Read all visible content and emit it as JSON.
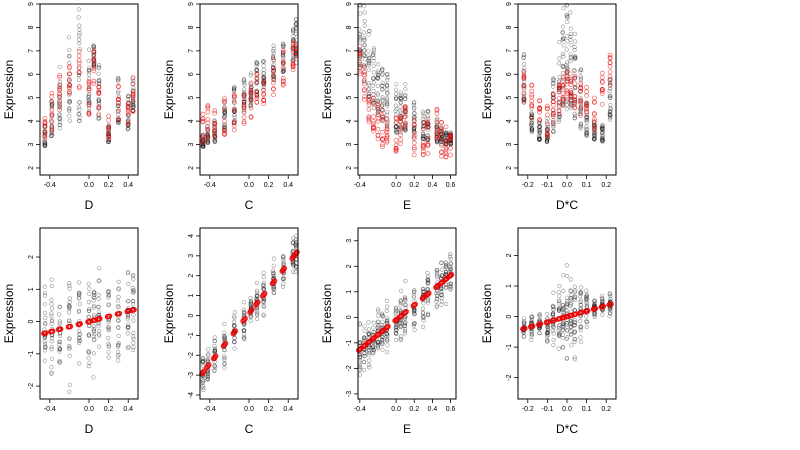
{
  "figure": {
    "ylabel": "Expression"
  },
  "chart_data": [
    {
      "type": "scatter",
      "panel": "raw-D",
      "xlabel": "D",
      "ylabel": "Expression",
      "xlim": [
        -0.5,
        0.5
      ],
      "ylim": [
        1.7,
        9.0
      ],
      "xticks": [
        -0.4,
        0.0,
        0.2,
        0.4
      ],
      "yticks": [
        2,
        3,
        4,
        5,
        6,
        7,
        8,
        9
      ],
      "x_levels": [
        -0.45,
        -0.38,
        -0.3,
        -0.2,
        -0.1,
        0.0,
        0.05,
        0.1,
        0.2,
        0.3,
        0.4,
        0.45
      ],
      "raw_a": [
        2.9,
        3.3,
        3.6,
        4.0,
        3.9,
        4.2,
        6.3,
        4.1,
        3.1,
        3.9,
        3.5,
        4.4
      ],
      "raw_b": [
        0.4,
        0.6,
        1.1,
        1.5,
        1.9,
        1.1,
        0.4,
        1.0,
        0.3,
        0.8,
        0.7,
        0.6
      ],
      "raw_red": [
        3.8,
        4.4,
        5.2,
        5.8,
        6.2,
        4.9,
        6.2,
        5.0,
        3.6,
        4.8,
        4.6,
        5.1
      ],
      "black_points_per_column": 22,
      "red_points_per_column": 10
    },
    {
      "type": "scatter",
      "panel": "raw-C",
      "xlabel": "C",
      "ylabel": "Expression",
      "xlim": [
        -0.5,
        0.5
      ],
      "ylim": [
        1.7,
        9.0
      ],
      "xticks": [
        -0.4,
        0.0,
        0.2,
        0.4
      ],
      "yticks": [
        2,
        3,
        4,
        5,
        6,
        7,
        8,
        9
      ],
      "x_levels": [
        -0.47,
        -0.42,
        -0.35,
        -0.25,
        -0.15,
        -0.05,
        0.02,
        0.08,
        0.15,
        0.25,
        0.35,
        0.45,
        0.48
      ],
      "raw_a": [
        2.9,
        3.0,
        3.1,
        3.6,
        3.9,
        4.3,
        4.6,
        5.0,
        5.3,
        5.7,
        6.1,
        6.5,
        6.8
      ],
      "raw_b": [
        0.2,
        0.3,
        0.4,
        0.5,
        0.6,
        0.6,
        0.6,
        0.6,
        0.5,
        0.6,
        0.5,
        0.6,
        0.7
      ],
      "raw_red": [
        3.6,
        3.9,
        4.0,
        4.2,
        4.4,
        4.6,
        4.9,
        5.2,
        5.5,
        5.9,
        6.3,
        6.8,
        7.0
      ],
      "black_points_per_column": 22,
      "red_points_per_column": 10
    },
    {
      "type": "scatter",
      "panel": "raw-E",
      "xlabel": "E",
      "ylabel": "Expression",
      "xlim": [
        -0.42,
        0.66
      ],
      "ylim": [
        1.7,
        9.0
      ],
      "xticks": [
        -0.4,
        0.0,
        0.2,
        0.4,
        0.6
      ],
      "yticks": [
        2,
        3,
        4,
        5,
        6,
        7,
        8,
        9
      ],
      "x_levels": [
        -0.4,
        -0.35,
        -0.3,
        -0.25,
        -0.2,
        -0.15,
        -0.1,
        0.0,
        0.05,
        0.1,
        0.2,
        0.3,
        0.35,
        0.45,
        0.5,
        0.55,
        0.6
      ],
      "raw_a": [
        6.2,
        5.6,
        5.0,
        4.5,
        4.2,
        4.0,
        3.7,
        3.5,
        3.4,
        3.6,
        3.3,
        3.2,
        3.2,
        3.1,
        3.0,
        3.0,
        3.0
      ],
      "raw_b": [
        1.2,
        1.3,
        1.2,
        1.1,
        1.0,
        0.9,
        0.9,
        0.8,
        0.7,
        0.8,
        0.6,
        0.5,
        0.5,
        0.4,
        0.3,
        0.2,
        0.2
      ],
      "raw_red": [
        6.8,
        5.6,
        4.6,
        4.3,
        4.0,
        3.7,
        3.6,
        3.5,
        3.6,
        4.1,
        3.3,
        3.2,
        3.3,
        4.0,
        3.2,
        3.0,
        3.1
      ],
      "black_points_per_column": 22,
      "red_points_per_column": 10
    },
    {
      "type": "scatter",
      "panel": "raw-DC",
      "xlabel": "D*C",
      "ylabel": "Expression",
      "xlim": [
        -0.25,
        0.25
      ],
      "ylim": [
        1.7,
        9.0
      ],
      "xticks": [
        -0.2,
        -0.1,
        0.0,
        0.1,
        0.2
      ],
      "yticks": [
        2,
        3,
        4,
        5,
        6,
        7,
        8,
        9
      ],
      "x_levels": [
        -0.22,
        -0.18,
        -0.14,
        -0.1,
        -0.07,
        -0.04,
        -0.02,
        0.0,
        0.02,
        0.04,
        0.07,
        0.1,
        0.14,
        0.18,
        0.22
      ],
      "raw_a": [
        4.8,
        3.5,
        3.2,
        3.1,
        3.5,
        3.9,
        4.5,
        4.5,
        4.4,
        3.9,
        3.6,
        3.3,
        3.2,
        3.1,
        4.0
      ],
      "raw_b": [
        0.8,
        0.4,
        0.3,
        0.4,
        0.9,
        1.4,
        1.8,
        1.9,
        1.7,
        1.5,
        1.0,
        0.6,
        0.3,
        0.3,
        0.7
      ],
      "raw_red": [
        5.6,
        4.8,
        4.2,
        4.0,
        4.5,
        5.0,
        5.3,
        5.4,
        5.4,
        5.2,
        5.0,
        4.7,
        4.3,
        5.5,
        6.2
      ],
      "black_points_per_column": 24,
      "red_points_per_column": 10
    },
    {
      "type": "scatter",
      "panel": "partial-D",
      "xlabel": "D",
      "ylabel": "Expression",
      "xlim": [
        -0.5,
        0.5
      ],
      "ylim": [
        -2.4,
        2.9
      ],
      "xticks": [
        -0.4,
        0.0,
        0.2,
        0.4
      ],
      "yticks": [
        -2,
        -1,
        0,
        1,
        2
      ],
      "x_levels": [
        -0.45,
        -0.38,
        -0.3,
        -0.2,
        -0.1,
        0.0,
        0.05,
        0.1,
        0.2,
        0.3,
        0.4,
        0.45
      ],
      "black_spread": 0.9,
      "black_points_per_column": 22,
      "fit_intercept": 0.0,
      "fit_slope": 0.8
    },
    {
      "type": "scatter",
      "panel": "partial-C",
      "xlabel": "C",
      "ylabel": "Expression",
      "xlim": [
        -0.5,
        0.5
      ],
      "ylim": [
        -4.2,
        4.4
      ],
      "xticks": [
        -0.4,
        0.0,
        0.2,
        0.4
      ],
      "yticks": [
        -4,
        -3,
        -2,
        -1,
        0,
        1,
        2,
        3,
        4
      ],
      "x_levels": [
        -0.47,
        -0.42,
        -0.35,
        -0.25,
        -0.15,
        -0.05,
        0.02,
        0.08,
        0.15,
        0.25,
        0.35,
        0.45,
        0.48
      ],
      "black_spread": 0.6,
      "black_points_per_column": 22,
      "fit_intercept": 0.1,
      "fit_slope": 6.3
    },
    {
      "type": "scatter",
      "panel": "partial-E",
      "xlabel": "E",
      "ylabel": "Expression",
      "xlim": [
        -0.42,
        0.66
      ],
      "ylim": [
        -3.2,
        3.5
      ],
      "xticks": [
        -0.4,
        0.0,
        0.2,
        0.4,
        0.6
      ],
      "yticks": [
        -3,
        -2,
        -1,
        0,
        1,
        2,
        3
      ],
      "x_levels": [
        -0.4,
        -0.35,
        -0.3,
        -0.25,
        -0.2,
        -0.15,
        -0.1,
        0.0,
        0.05,
        0.1,
        0.2,
        0.3,
        0.35,
        0.45,
        0.5,
        0.55,
        0.6
      ],
      "black_spread": 0.6,
      "black_points_per_column": 22,
      "fit_intercept": -0.1,
      "fit_slope": 2.9
    },
    {
      "type": "scatter",
      "panel": "partial-DC",
      "xlabel": "D*C",
      "ylabel": "Expression",
      "xlim": [
        -0.25,
        0.25
      ],
      "ylim": [
        -2.7,
        2.9
      ],
      "xticks": [
        -0.2,
        -0.1,
        0.0,
        0.1,
        0.2
      ],
      "yticks": [
        -2,
        -1,
        0,
        1,
        2
      ],
      "x_levels": [
        -0.22,
        -0.18,
        -0.14,
        -0.1,
        -0.07,
        -0.04,
        -0.02,
        0.0,
        0.02,
        0.04,
        0.07,
        0.1,
        0.14,
        0.18,
        0.22
      ],
      "black_spread_center": 0.9,
      "black_spread_edge": 0.2,
      "black_points_per_column": 24,
      "fit_intercept": 0.0,
      "fit_slope": 1.8
    }
  ]
}
